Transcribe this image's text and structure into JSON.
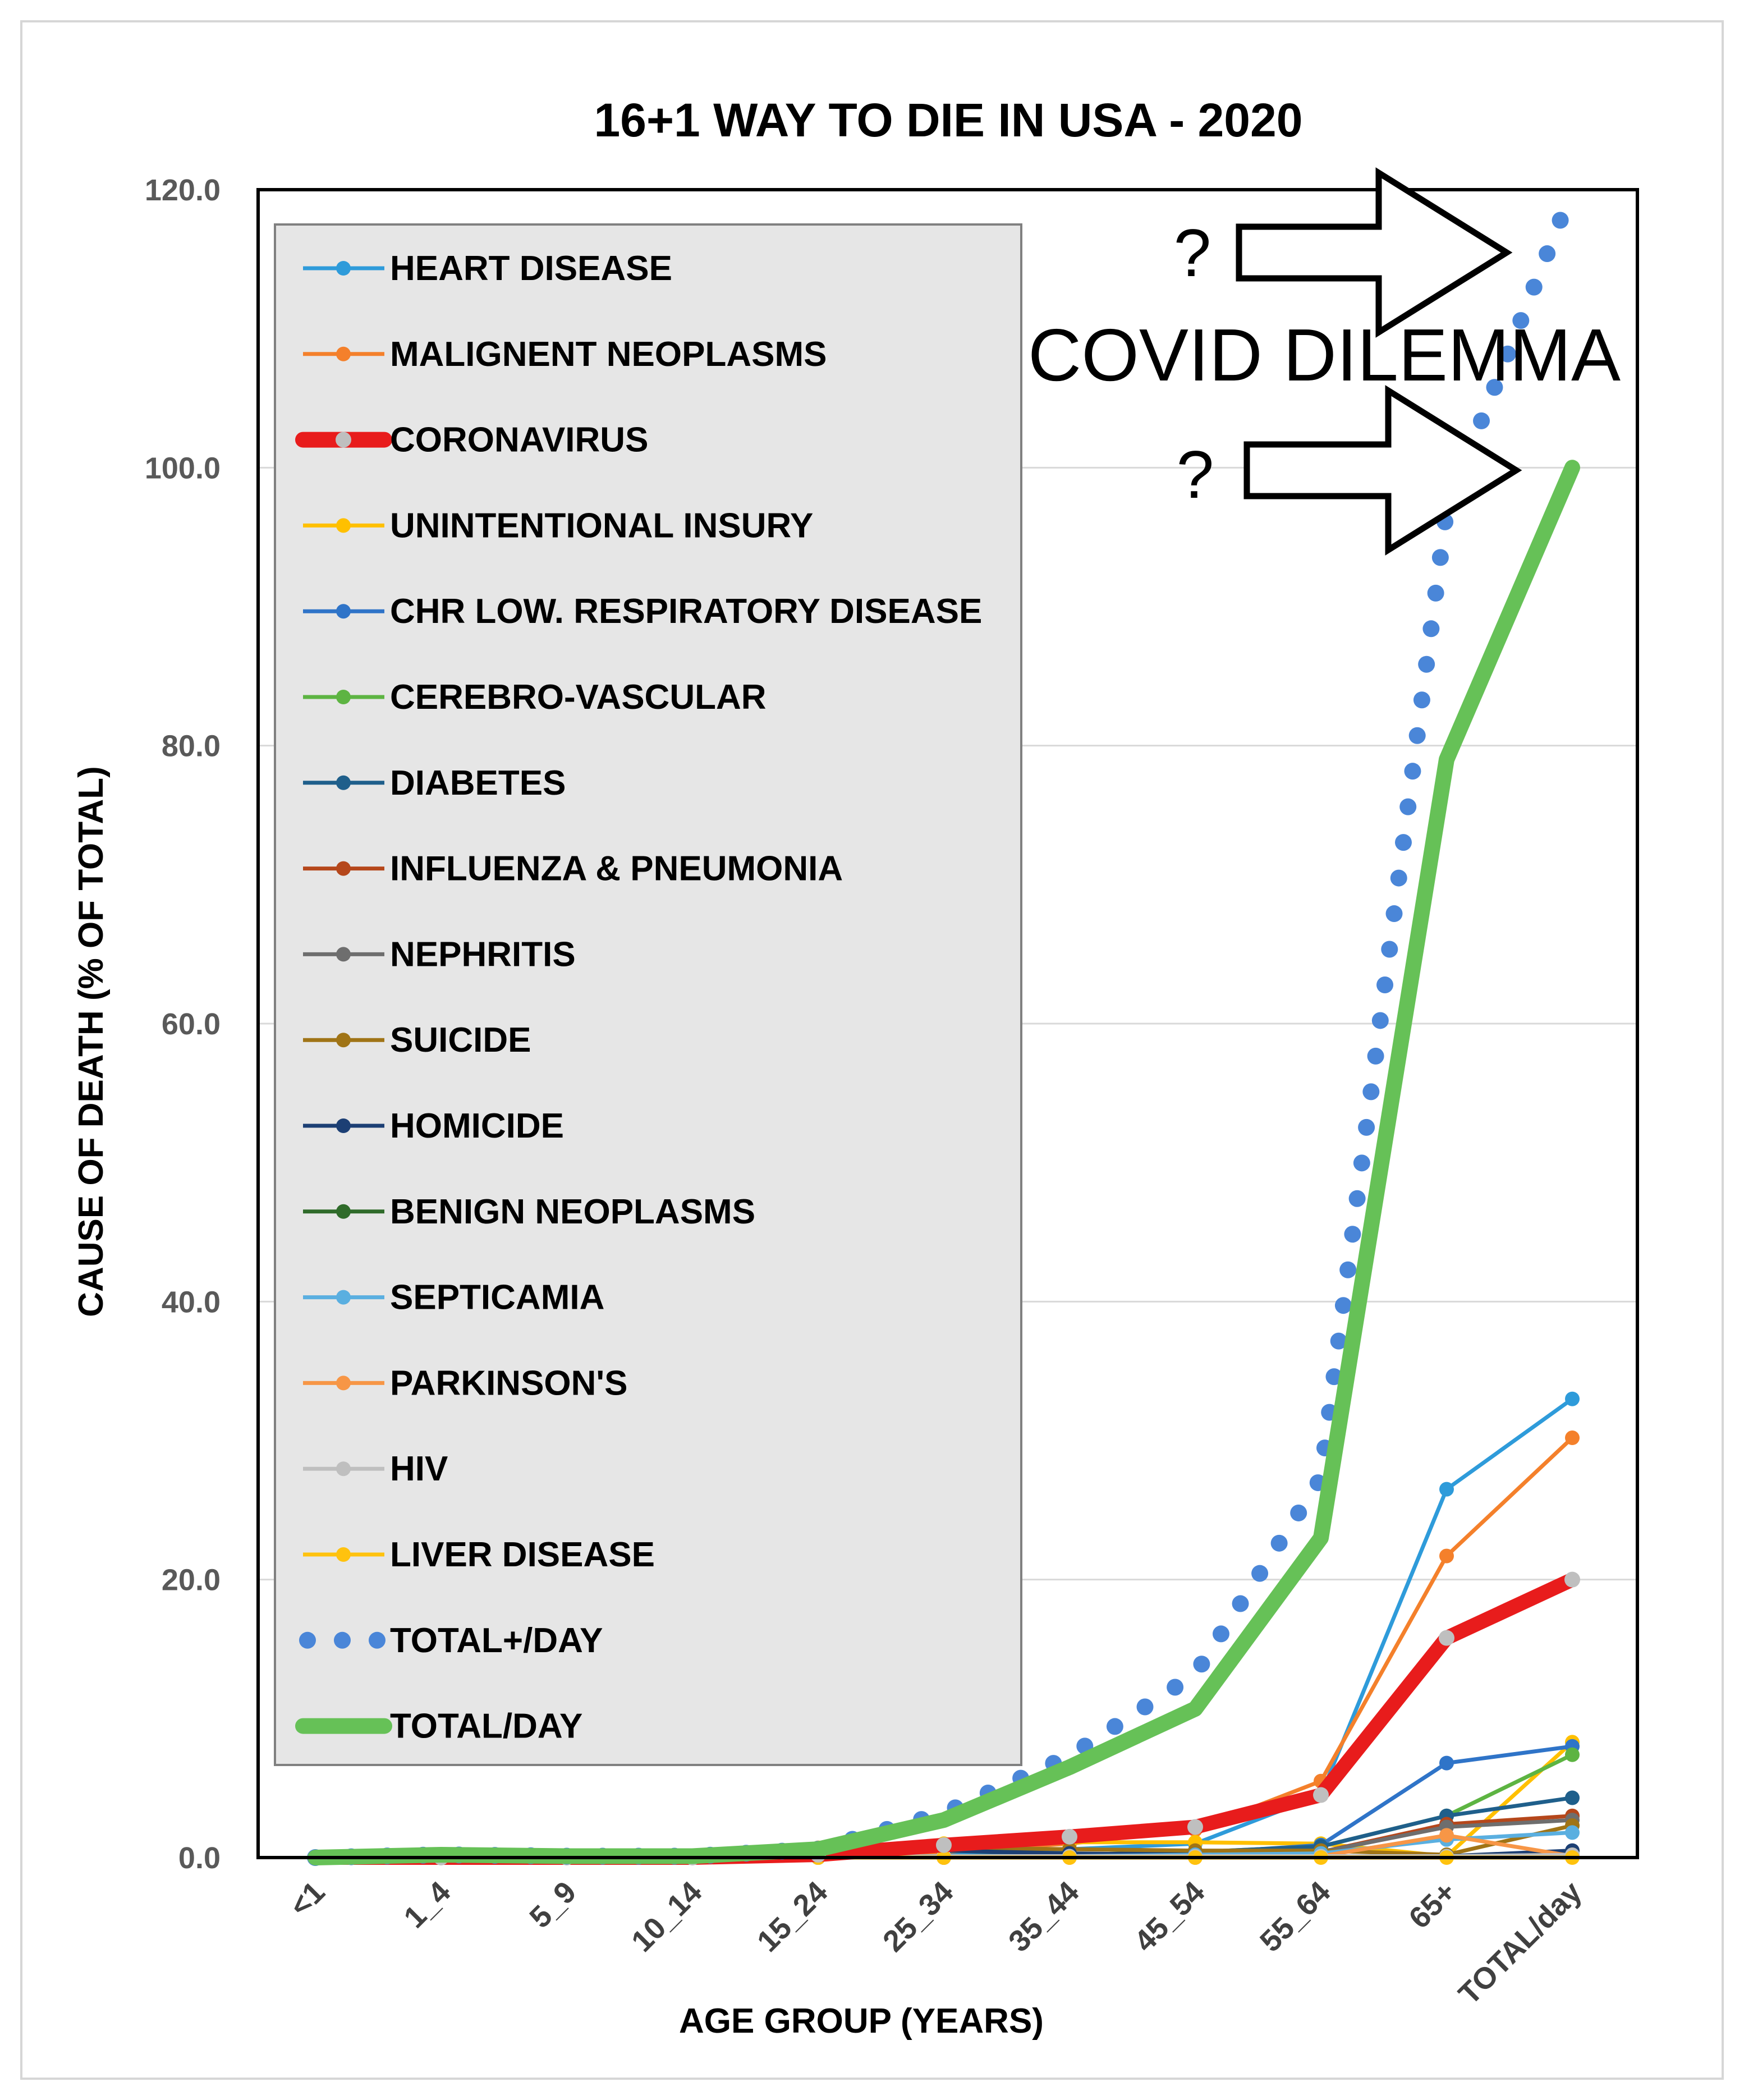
{
  "chart_data": {
    "type": "line",
    "title": "16+1 WAY TO DIE IN USA - 2020",
    "xlabel": "AGE GROUP (YEARS)",
    "ylabel": "CAUSE OF DEATH (% OF TOTAL)",
    "categories": [
      "<1",
      "1_4",
      "5_9",
      "10_14",
      "15_24",
      "25_34",
      "35_44",
      "45_54",
      "55_64",
      "65+",
      "TOTAL/day"
    ],
    "ylim": [
      0,
      120
    ],
    "yticks": [
      "0.0",
      "20.0",
      "40.0",
      "60.0",
      "80.0",
      "100.0",
      "120.0"
    ],
    "grid": true,
    "legend_position": "top-left",
    "series": [
      {
        "name": "HEART DISEASE",
        "color": "#2E9BDA",
        "style": "line-marker",
        "values": [
          0,
          0,
          0,
          0,
          0.1,
          0.3,
          0.6,
          1.0,
          4.5,
          26.5,
          33.0
        ]
      },
      {
        "name": "MALIGNENT NEOPLASMS",
        "color": "#F4802B",
        "style": "line-marker",
        "values": [
          0,
          0,
          0,
          0,
          0.1,
          0.4,
          1.0,
          2.0,
          5.5,
          21.7,
          30.2
        ]
      },
      {
        "name": "CORONAVIRUS",
        "color": "#E81C1C",
        "style": "thick",
        "values": [
          0,
          0,
          0,
          0,
          0.2,
          0.9,
          1.5,
          2.2,
          4.5,
          15.8,
          20.0
        ]
      },
      {
        "name": "UNINTENTIONAL INSURY",
        "color": "#FFC000",
        "style": "line-marker",
        "values": [
          0,
          0.1,
          0.1,
          0.1,
          0.7,
          1.0,
          1.1,
          1.1,
          1.0,
          0.1,
          8.3
        ]
      },
      {
        "name": "CHR LOW. RESPIRATORY DISEASE",
        "color": "#2F74C8",
        "style": "line-marker",
        "values": [
          0,
          0,
          0,
          0,
          0,
          0.1,
          0.2,
          0.3,
          0.9,
          6.8,
          8.0
        ]
      },
      {
        "name": "CEREBRO-VASCULAR",
        "color": "#5DB442",
        "style": "line-marker",
        "values": [
          0,
          0,
          0,
          0,
          0,
          0.1,
          0.2,
          0.4,
          0.8,
          3.0,
          7.4
        ]
      },
      {
        "name": "DIABETES",
        "color": "#1F5F8B",
        "style": "line-marker",
        "values": [
          0,
          0,
          0,
          0,
          0,
          0.1,
          0.2,
          0.4,
          0.8,
          3.0,
          4.3
        ]
      },
      {
        "name": "INFLUENZA & PNEUMONIA",
        "color": "#B5471B",
        "style": "line-marker",
        "values": [
          0,
          0,
          0,
          0,
          0,
          0.1,
          0.1,
          0.2,
          0.4,
          2.4,
          3.0
        ]
      },
      {
        "name": "NEPHRITIS",
        "color": "#6E6E6E",
        "style": "line-marker",
        "values": [
          0,
          0,
          0,
          0,
          0,
          0.1,
          0.1,
          0.2,
          0.4,
          2.2,
          2.7
        ]
      },
      {
        "name": "SUICIDE",
        "color": "#A07416",
        "style": "line-marker",
        "values": [
          0,
          0,
          0,
          0.1,
          0.6,
          0.7,
          0.6,
          0.5,
          0.5,
          0.2,
          2.3
        ]
      },
      {
        "name": "HOMICIDE",
        "color": "#1C3F74",
        "style": "line-marker",
        "values": [
          0,
          0,
          0,
          0,
          0.5,
          0.5,
          0.3,
          0.2,
          0.1,
          0.1,
          0.5
        ]
      },
      {
        "name": "BENIGN NEOPLASMS",
        "color": "#2F6B2A",
        "style": "line-marker",
        "values": [
          0,
          0,
          0,
          0,
          0,
          0,
          0.1,
          0.1,
          0.1,
          0.1,
          0.2
        ]
      },
      {
        "name": "SEPTICAMIA",
        "color": "#5AAFE0",
        "style": "line-marker",
        "values": [
          0,
          0,
          0,
          0,
          0,
          0.1,
          0.1,
          0.2,
          0.3,
          1.3,
          1.8
        ]
      },
      {
        "name": "PARKINSON'S",
        "color": "#F79646",
        "style": "line-marker",
        "values": [
          0,
          0,
          0,
          0,
          0,
          0,
          0,
          0,
          0.1,
          1.6,
          0.1
        ]
      },
      {
        "name": "HIV",
        "color": "#BFBFBF",
        "style": "line-marker",
        "values": [
          0,
          0,
          0,
          0,
          0,
          0.1,
          0.1,
          0.1,
          0.1,
          0.1,
          0.2
        ]
      },
      {
        "name": "LIVER DISEASE",
        "color": "#FFC20E",
        "style": "line-marker",
        "values": [
          0,
          0,
          0,
          0,
          0,
          0,
          0,
          0,
          0,
          0,
          0
        ]
      },
      {
        "name": "TOTAL+/DAY",
        "color": "#4A86D8",
        "style": "dotted",
        "values": [
          0,
          0.2,
          0.1,
          0.1,
          0.6,
          3.2,
          7.3,
          13.2,
          27.3,
          97.0,
          120.0
        ]
      },
      {
        "name": "TOTAL/DAY",
        "color": "#66C157",
        "style": "thick",
        "values": [
          0,
          0.2,
          0.1,
          0.1,
          0.6,
          2.7,
          6.5,
          10.7,
          23.0,
          79.0,
          100.0
        ]
      }
    ],
    "annotations": {
      "question_mark": "?",
      "dilemma_text": "COVID DILEMMA"
    }
  }
}
